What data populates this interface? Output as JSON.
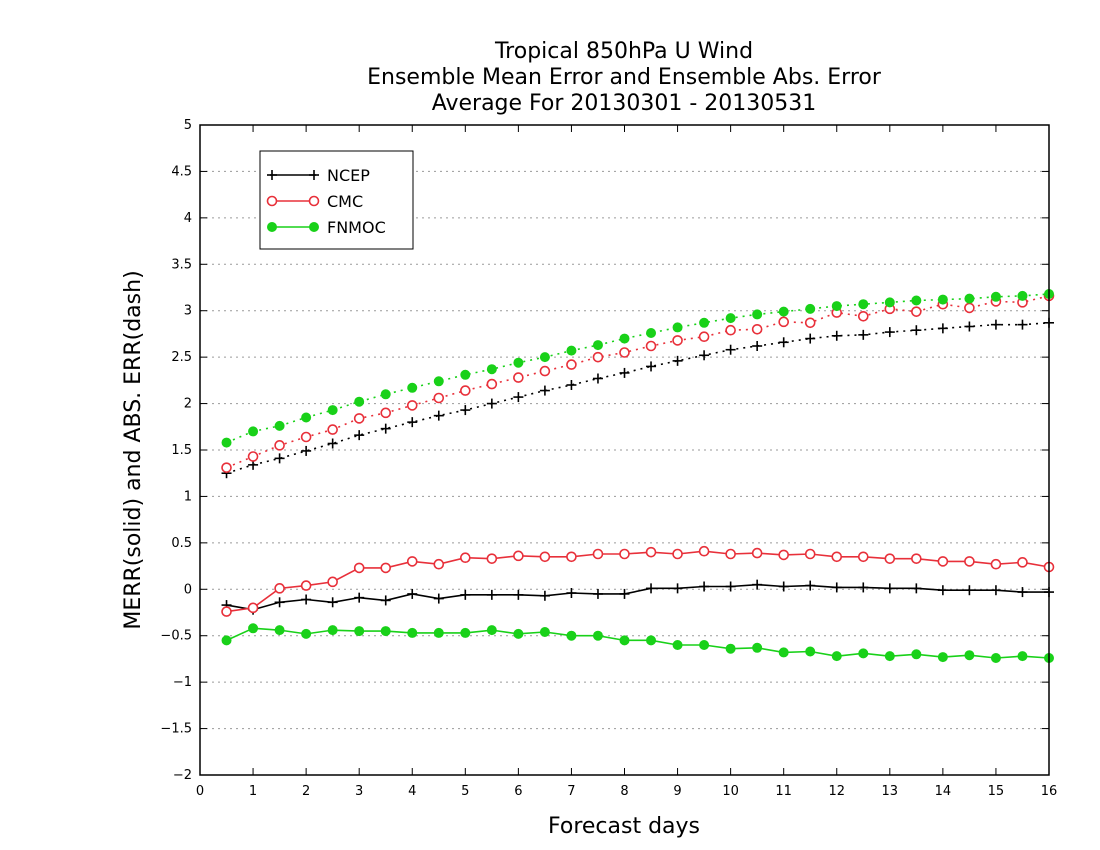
{
  "chart_data": {
    "type": "line",
    "title": [
      "Tropical 850hPa U Wind",
      "Ensemble Mean Error and Ensemble Abs. Error",
      "Average For 20130301 - 20130531"
    ],
    "xlabel": "Forecast days",
    "ylabel": "MERR(solid) and ABS. ERR(dash)",
    "xlim": [
      0,
      16
    ],
    "ylim": [
      -2,
      5
    ],
    "xticks": [
      0,
      1,
      2,
      3,
      4,
      5,
      6,
      7,
      8,
      9,
      10,
      11,
      12,
      13,
      14,
      15,
      16
    ],
    "yticks": [
      -2,
      -1.5,
      -1,
      -0.5,
      0,
      0.5,
      1,
      1.5,
      2,
      2.5,
      3,
      3.5,
      4,
      4.5,
      5
    ],
    "ytick_labels": [
      "−2",
      "−1.5",
      "−1",
      "−0.5",
      "0",
      "0.5",
      "1",
      "1.5",
      "2",
      "2.5",
      "3",
      "3.5",
      "4",
      "4.5",
      "5"
    ],
    "grid": "horizontal dotted",
    "legend_position": "top-left",
    "x": [
      0.5,
      1,
      1.5,
      2,
      2.5,
      3,
      3.5,
      4,
      4.5,
      5,
      5.5,
      6,
      6.5,
      7,
      7.5,
      8,
      8.5,
      9,
      9.5,
      10,
      10.5,
      11,
      11.5,
      12,
      12.5,
      13,
      13.5,
      14,
      14.5,
      15,
      15.5,
      16
    ],
    "series": [
      {
        "name": "NCEP",
        "color": "#000000",
        "marker": "plus",
        "merr": [
          -0.17,
          -0.22,
          -0.14,
          -0.11,
          -0.14,
          -0.09,
          -0.12,
          -0.05,
          -0.1,
          -0.06,
          -0.06,
          -0.06,
          -0.07,
          -0.04,
          -0.05,
          -0.05,
          0.01,
          0.01,
          0.03,
          0.03,
          0.05,
          0.03,
          0.04,
          0.02,
          0.02,
          0.01,
          0.01,
          -0.01,
          -0.01,
          -0.01,
          -0.03,
          -0.03
        ],
        "abs_err": [
          1.25,
          1.34,
          1.41,
          1.49,
          1.57,
          1.66,
          1.73,
          1.8,
          1.87,
          1.93,
          2.0,
          2.07,
          2.14,
          2.2,
          2.27,
          2.33,
          2.4,
          2.46,
          2.52,
          2.58,
          2.62,
          2.66,
          2.7,
          2.73,
          2.74,
          2.77,
          2.79,
          2.81,
          2.83,
          2.85,
          2.85,
          2.87
        ]
      },
      {
        "name": "CMC",
        "color": "#e8303a",
        "marker": "open-circle",
        "merr": [
          -0.24,
          -0.2,
          0.01,
          0.04,
          0.08,
          0.23,
          0.23,
          0.3,
          0.27,
          0.34,
          0.33,
          0.36,
          0.35,
          0.35,
          0.38,
          0.38,
          0.4,
          0.38,
          0.41,
          0.38,
          0.39,
          0.37,
          0.38,
          0.35,
          0.35,
          0.33,
          0.33,
          0.3,
          0.3,
          0.27,
          0.29,
          0.24
        ],
        "abs_err": [
          1.31,
          1.43,
          1.55,
          1.64,
          1.72,
          1.84,
          1.9,
          1.98,
          2.06,
          2.14,
          2.21,
          2.28,
          2.35,
          2.42,
          2.5,
          2.55,
          2.62,
          2.68,
          2.72,
          2.79,
          2.8,
          2.88,
          2.87,
          2.98,
          2.94,
          3.02,
          2.99,
          3.07,
          3.03,
          3.1,
          3.09,
          3.16
        ]
      },
      {
        "name": "FNMOC",
        "color": "#19d119",
        "marker": "filled-circle",
        "merr": [
          -0.55,
          -0.42,
          -0.44,
          -0.48,
          -0.44,
          -0.45,
          -0.45,
          -0.47,
          -0.47,
          -0.47,
          -0.44,
          -0.48,
          -0.46,
          -0.5,
          -0.5,
          -0.55,
          -0.55,
          -0.6,
          -0.6,
          -0.64,
          -0.63,
          -0.68,
          -0.67,
          -0.72,
          -0.69,
          -0.72,
          -0.7,
          -0.73,
          -0.71,
          -0.74,
          -0.72,
          -0.74
        ],
        "abs_err": [
          1.58,
          1.7,
          1.76,
          1.85,
          1.93,
          2.02,
          2.1,
          2.17,
          2.24,
          2.31,
          2.37,
          2.44,
          2.5,
          2.57,
          2.63,
          2.7,
          2.76,
          2.82,
          2.87,
          2.92,
          2.96,
          2.99,
          3.02,
          3.05,
          3.07,
          3.09,
          3.11,
          3.12,
          3.13,
          3.15,
          3.16,
          3.18
        ]
      }
    ]
  }
}
